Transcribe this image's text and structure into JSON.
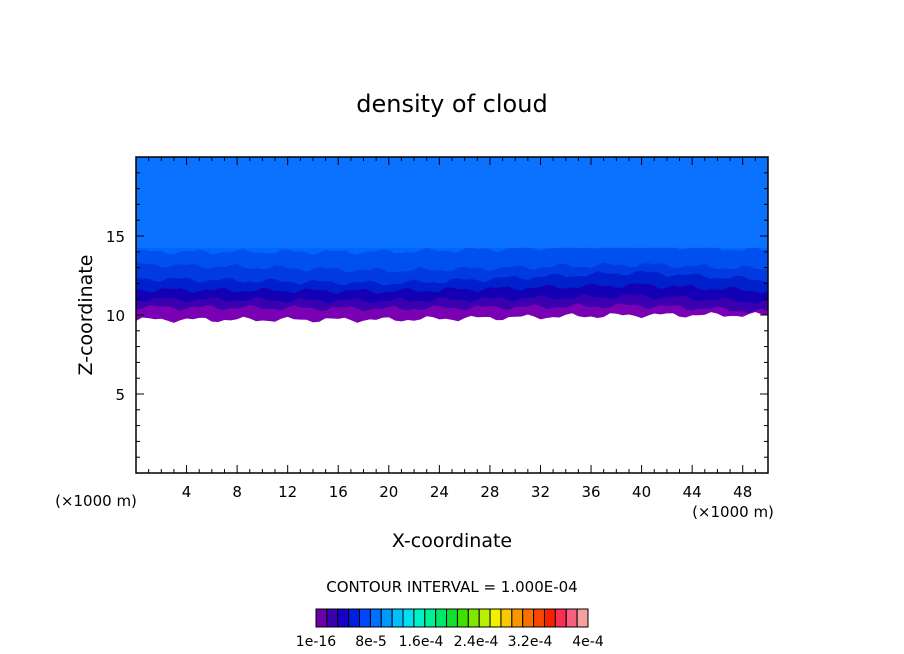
{
  "chart_data": {
    "type": "heatmap",
    "title": "density of cloud",
    "xlabel": "X-coordinate",
    "ylabel": "Z-coordinate",
    "x_unit": "(×1000 m)",
    "y_unit": "(×1000 m)",
    "xlim": [
      0,
      50
    ],
    "ylim": [
      0,
      20
    ],
    "x_ticks": [
      4,
      8,
      12,
      16,
      20,
      24,
      28,
      32,
      36,
      40,
      44,
      48
    ],
    "y_ticks": [
      5,
      10,
      15
    ],
    "contour_interval_label": "CONTOUR INTERVAL = 1.000E-04",
    "colorbar_labels": [
      "1e-16",
      "8e-5",
      "1.6e-4",
      "2.4e-4",
      "3.2e-4",
      "4e-4"
    ],
    "colorbar_colors": [
      "#6c00a8",
      "#3a00b0",
      "#1800c8",
      "#0020e0",
      "#0048f8",
      "#0070ff",
      "#0098ff",
      "#00c0ff",
      "#00e0f0",
      "#00f0c8",
      "#00f098",
      "#00e868",
      "#10e030",
      "#40e000",
      "#80e800",
      "#b8f000",
      "#f0f000",
      "#f8c800",
      "#f89800",
      "#f87000",
      "#f84800",
      "#f82000",
      "#f83050",
      "#f86080",
      "#f8a0a0"
    ],
    "contour_bands": [
      {
        "color": "#0066ff",
        "z_bottom_x": [
          14.0,
          14.0,
          14.4,
          14.1
        ],
        "x_knots": [
          0,
          20,
          40,
          50
        ]
      },
      {
        "color": "#0050f0",
        "z_bottom_x": [
          13.2,
          12.8,
          13.2,
          12.9
        ],
        "x_knots": [
          0,
          20,
          40,
          50
        ]
      },
      {
        "color": "#003ae0",
        "z_bottom_x": [
          12.3,
          12.0,
          12.7,
          12.2
        ],
        "x_knots": [
          0,
          20,
          40,
          50
        ]
      },
      {
        "color": "#0020cc",
        "z_bottom_x": [
          11.6,
          11.5,
          11.9,
          11.5
        ],
        "x_knots": [
          0,
          20,
          40,
          50
        ]
      },
      {
        "color": "#1400b4",
        "z_bottom_x": [
          11.0,
          10.9,
          11.2,
          10.8
        ],
        "x_knots": [
          0,
          20,
          40,
          50
        ]
      },
      {
        "color": "#3a00b0",
        "z_bottom_x": [
          10.5,
          10.4,
          10.6,
          10.2
        ],
        "x_knots": [
          0,
          20,
          40,
          50
        ]
      },
      {
        "color": "#7a00b4",
        "z_bottom_x": [
          9.7,
          9.7,
          10.0,
          10.0
        ],
        "x_knots": [
          0,
          20,
          40,
          50
        ]
      }
    ]
  }
}
